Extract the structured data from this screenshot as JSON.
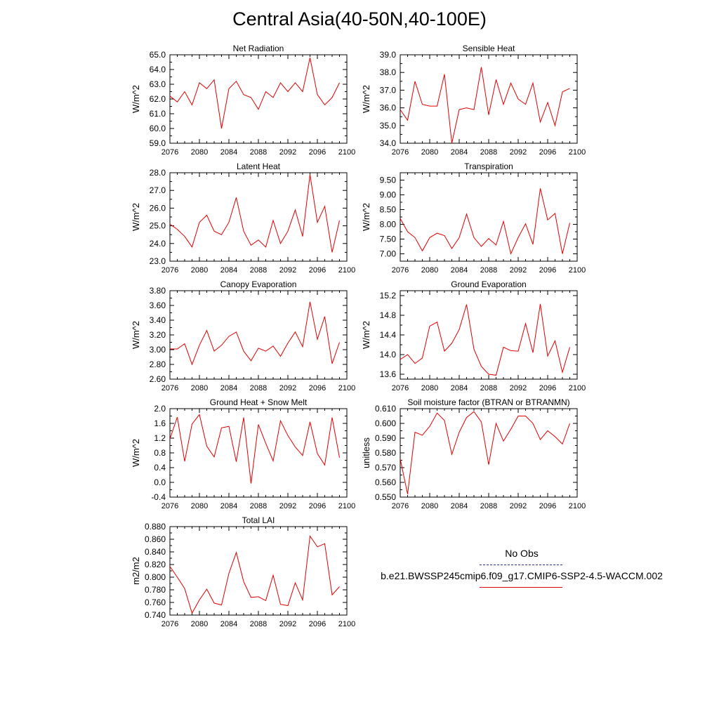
{
  "title": "Central Asia(40-50N,40-100E)",
  "legend": {
    "obs_label": "No Obs",
    "obs_color": "#2b2b8a",
    "model_label": "b.e21.BWSSP245cmip6.f09_g17.CMIP6-SSP2-4.5-WACCM.002",
    "model_color": "#e00000"
  },
  "chart_data": [
    {
      "type": "line",
      "title": "Net Radiation",
      "ylabel": "W/m^2",
      "xlim": [
        2076,
        2100
      ],
      "xticks": [
        "2076",
        "2080",
        "2084",
        "2088",
        "2092",
        "2096",
        "2100"
      ],
      "ylim": [
        59.0,
        65.0
      ],
      "yticks": [
        "59.0",
        "60.0",
        "61.0",
        "62.0",
        "63.0",
        "64.0",
        "65.0"
      ],
      "x": [
        2076,
        2077,
        2078,
        2079,
        2080,
        2081,
        2082,
        2083,
        2084,
        2085,
        2086,
        2087,
        2088,
        2089,
        2090,
        2091,
        2092,
        2093,
        2094,
        2095,
        2096,
        2097,
        2098,
        2099
      ],
      "values": [
        62.2,
        61.8,
        62.5,
        61.6,
        63.1,
        62.7,
        63.3,
        60.0,
        62.7,
        63.2,
        62.3,
        62.1,
        61.3,
        62.5,
        62.1,
        63.1,
        62.5,
        63.1,
        62.5,
        64.8,
        62.3,
        61.6,
        62.1,
        63.1
      ]
    },
    {
      "type": "line",
      "title": "Sensible Heat",
      "ylabel": "W/m^2",
      "xlim": [
        2076,
        2100
      ],
      "xticks": [
        "2076",
        "2080",
        "2084",
        "2088",
        "2092",
        "2096",
        "2100"
      ],
      "ylim": [
        34.0,
        39.0
      ],
      "yticks": [
        "34.0",
        "35.0",
        "36.0",
        "37.0",
        "38.0",
        "39.0"
      ],
      "x": [
        2076,
        2077,
        2078,
        2079,
        2080,
        2081,
        2082,
        2083,
        2084,
        2085,
        2086,
        2087,
        2088,
        2089,
        2090,
        2091,
        2092,
        2093,
        2094,
        2095,
        2096,
        2097,
        2098,
        2099
      ],
      "values": [
        35.9,
        35.3,
        37.5,
        36.2,
        36.1,
        36.1,
        37.9,
        34.0,
        35.9,
        36.0,
        35.9,
        38.3,
        35.6,
        37.6,
        36.2,
        37.4,
        36.5,
        36.2,
        37.4,
        35.2,
        36.3,
        35.0,
        36.9,
        37.1
      ]
    },
    {
      "type": "line",
      "title": "Latent Heat",
      "ylabel": "W/m^2",
      "xlim": [
        2076,
        2100
      ],
      "xticks": [
        "2076",
        "2080",
        "2084",
        "2088",
        "2092",
        "2096",
        "2100"
      ],
      "ylim": [
        23.0,
        28.0
      ],
      "yticks": [
        "23.0",
        "24.0",
        "25.0",
        "26.0",
        "27.0",
        "28.0"
      ],
      "x": [
        2076,
        2077,
        2078,
        2079,
        2080,
        2081,
        2082,
        2083,
        2084,
        2085,
        2086,
        2087,
        2088,
        2089,
        2090,
        2091,
        2092,
        2093,
        2094,
        2095,
        2096,
        2097,
        2098,
        2099
      ],
      "values": [
        25.1,
        24.8,
        24.4,
        23.8,
        25.2,
        25.6,
        24.7,
        24.5,
        25.2,
        26.6,
        24.7,
        23.9,
        24.2,
        23.8,
        25.3,
        24.0,
        24.7,
        25.9,
        24.4,
        27.9,
        25.2,
        26.1,
        23.5,
        25.3
      ]
    },
    {
      "type": "line",
      "title": "Transpiration",
      "ylabel": "W/m^2",
      "xlim": [
        2076,
        2100
      ],
      "xticks": [
        "2076",
        "2080",
        "2084",
        "2088",
        "2092",
        "2096",
        "2100"
      ],
      "ylim": [
        6.75,
        9.75
      ],
      "yticks": [
        "7.00",
        "7.50",
        "8.00",
        "8.50",
        "9.00",
        "9.50"
      ],
      "x": [
        2076,
        2077,
        2078,
        2079,
        2080,
        2081,
        2082,
        2083,
        2084,
        2085,
        2086,
        2087,
        2088,
        2089,
        2090,
        2091,
        2092,
        2093,
        2094,
        2095,
        2096,
        2097,
        2098,
        2099
      ],
      "values": [
        8.2,
        7.75,
        7.55,
        7.1,
        7.55,
        7.7,
        7.62,
        7.18,
        7.55,
        8.35,
        7.55,
        7.25,
        7.52,
        7.3,
        8.1,
        7.0,
        7.55,
        8.02,
        7.32,
        9.22,
        8.15,
        8.37,
        7.0,
        8.05
      ]
    },
    {
      "type": "line",
      "title": "Canopy Evaporation",
      "ylabel": "W/m^2",
      "xlim": [
        2076,
        2100
      ],
      "xticks": [
        "2076",
        "2080",
        "2084",
        "2088",
        "2092",
        "2096",
        "2100"
      ],
      "ylim": [
        2.6,
        3.8
      ],
      "yticks": [
        "2.60",
        "2.80",
        "3.00",
        "3.20",
        "3.40",
        "3.60",
        "3.80"
      ],
      "x": [
        2076,
        2077,
        2078,
        2079,
        2080,
        2081,
        2082,
        2083,
        2084,
        2085,
        2086,
        2087,
        2088,
        2089,
        2090,
        2091,
        2092,
        2093,
        2094,
        2095,
        2096,
        2097,
        2098,
        2099
      ],
      "values": [
        3.01,
        3.01,
        3.08,
        2.8,
        3.06,
        3.26,
        2.98,
        3.06,
        3.18,
        3.24,
        2.98,
        2.85,
        3.02,
        2.98,
        3.05,
        2.91,
        3.09,
        3.24,
        3.04,
        3.65,
        3.14,
        3.45,
        2.81,
        3.1
      ]
    },
    {
      "type": "line",
      "title": "Ground Evaporation",
      "ylabel": "W/m^2",
      "xlim": [
        2076,
        2100
      ],
      "xticks": [
        "2076",
        "2080",
        "2084",
        "2088",
        "2092",
        "2096",
        "2100"
      ],
      "ylim": [
        13.5,
        15.3
      ],
      "yticks": [
        "13.6",
        "14.0",
        "14.4",
        "14.8",
        "15.2"
      ],
      "x": [
        2076,
        2077,
        2078,
        2079,
        2080,
        2081,
        2082,
        2083,
        2084,
        2085,
        2086,
        2087,
        2088,
        2089,
        2090,
        2091,
        2092,
        2093,
        2094,
        2095,
        2096,
        2097,
        2098,
        2099
      ],
      "values": [
        13.9,
        14.0,
        13.82,
        13.93,
        14.58,
        14.66,
        14.07,
        14.23,
        14.51,
        15.02,
        14.11,
        13.76,
        13.6,
        13.58,
        14.15,
        14.08,
        14.07,
        14.63,
        14.04,
        15.03,
        13.97,
        14.28,
        13.64,
        14.15
      ]
    },
    {
      "type": "line",
      "title": "Ground Heat + Snow Melt",
      "ylabel": "W/m^2",
      "xlim": [
        2076,
        2100
      ],
      "xticks": [
        "2076",
        "2080",
        "2084",
        "2088",
        "2092",
        "2096",
        "2100"
      ],
      "ylim": [
        -0.4,
        2.0
      ],
      "yticks": [
        "-0.4",
        "0.0",
        "0.4",
        "0.8",
        "1.2",
        "1.6",
        "2.0"
      ],
      "x": [
        2076,
        2077,
        2078,
        2079,
        2080,
        2081,
        2082,
        2083,
        2084,
        2085,
        2086,
        2087,
        2088,
        2089,
        2090,
        2091,
        2092,
        2093,
        2094,
        2095,
        2096,
        2097,
        2098,
        2099
      ],
      "values": [
        1.18,
        1.77,
        0.57,
        1.58,
        1.84,
        0.98,
        0.69,
        1.48,
        1.52,
        0.56,
        1.76,
        -0.03,
        1.57,
        1.06,
        0.58,
        1.67,
        1.27,
        0.96,
        0.73,
        1.64,
        0.78,
        0.47,
        1.76,
        0.67
      ]
    },
    {
      "type": "line",
      "title": "Soil moisture factor (BTRAN or BTRANMN)",
      "ylabel": "unitless",
      "xlim": [
        2076,
        2100
      ],
      "xticks": [
        "2076",
        "2080",
        "2084",
        "2088",
        "2092",
        "2096",
        "2100"
      ],
      "ylim": [
        0.55,
        0.61
      ],
      "yticks": [
        "0.550",
        "0.560",
        "0.570",
        "0.580",
        "0.590",
        "0.600",
        "0.610"
      ],
      "x": [
        2076,
        2077,
        2078,
        2079,
        2080,
        2081,
        2082,
        2083,
        2084,
        2085,
        2086,
        2087,
        2088,
        2089,
        2090,
        2091,
        2092,
        2093,
        2094,
        2095,
        2096,
        2097,
        2098,
        2099
      ],
      "values": [
        0.576,
        0.552,
        0.594,
        0.592,
        0.598,
        0.607,
        0.602,
        0.579,
        0.594,
        0.604,
        0.608,
        0.601,
        0.572,
        0.6,
        0.588,
        0.596,
        0.605,
        0.605,
        0.6,
        0.589,
        0.595,
        0.591,
        0.586,
        0.6
      ]
    },
    {
      "type": "line",
      "title": "Total LAI",
      "ylabel": "m2/m2",
      "xlim": [
        2076,
        2100
      ],
      "xticks": [
        "2076",
        "2080",
        "2084",
        "2088",
        "2092",
        "2096",
        "2100"
      ],
      "ylim": [
        0.74,
        0.88
      ],
      "yticks": [
        "0.740",
        "0.760",
        "0.780",
        "0.800",
        "0.820",
        "0.840",
        "0.860",
        "0.880"
      ],
      "x": [
        2076,
        2077,
        2078,
        2079,
        2080,
        2081,
        2082,
        2083,
        2084,
        2085,
        2086,
        2087,
        2088,
        2089,
        2090,
        2091,
        2092,
        2093,
        2094,
        2095,
        2096,
        2097,
        2098,
        2099
      ],
      "values": [
        0.817,
        0.8,
        0.782,
        0.743,
        0.764,
        0.781,
        0.759,
        0.756,
        0.806,
        0.839,
        0.793,
        0.768,
        0.769,
        0.763,
        0.803,
        0.757,
        0.755,
        0.791,
        0.764,
        0.865,
        0.848,
        0.853,
        0.772,
        0.785
      ]
    }
  ]
}
